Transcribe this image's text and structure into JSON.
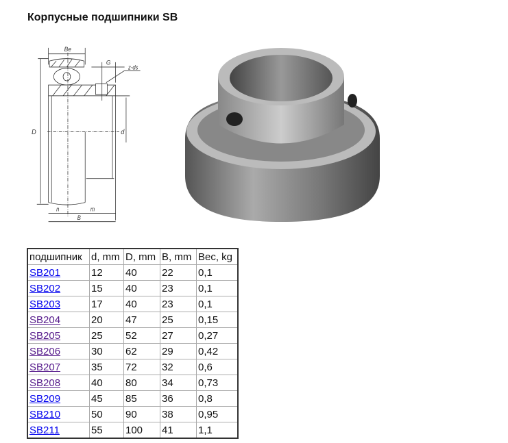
{
  "title": "Корпусные подшипники SB",
  "drawing": {
    "labels": {
      "Be": "Be",
      "G": "G",
      "ds": "z-ds",
      "D": "D",
      "d": "d",
      "n": "n",
      "m": "m",
      "B": "B"
    }
  },
  "table": {
    "headers": [
      "подшипник",
      "d, mm",
      "D, mm",
      "B, mm",
      "Вес, kg"
    ],
    "rows": [
      {
        "name": "SB201",
        "d": "12",
        "D": "40",
        "B": "22",
        "w": "0,1",
        "visited": false
      },
      {
        "name": "SB202",
        "d": "15",
        "D": "40",
        "B": "23",
        "w": "0,1",
        "visited": false
      },
      {
        "name": "SB203",
        "d": "17",
        "D": "40",
        "B": "23",
        "w": "0,1",
        "visited": false
      },
      {
        "name": "SB204",
        "d": "20",
        "D": "47",
        "B": "25",
        "w": "0,15",
        "visited": true
      },
      {
        "name": "SB205",
        "d": "25",
        "D": "52",
        "B": "27",
        "w": "0,27",
        "visited": true
      },
      {
        "name": "SB206",
        "d": "30",
        "D": "62",
        "B": "29",
        "w": "0,42",
        "visited": true
      },
      {
        "name": "SB207",
        "d": "35",
        "D": "72",
        "B": "32",
        "w": "0,6",
        "visited": true
      },
      {
        "name": "SB208",
        "d": "40",
        "D": "80",
        "B": "34",
        "w": "0,73",
        "visited": true
      },
      {
        "name": "SB209",
        "d": "45",
        "D": "85",
        "B": "36",
        "w": "0,8",
        "visited": false
      },
      {
        "name": "SB210",
        "d": "50",
        "D": "90",
        "B": "38",
        "w": "0,95",
        "visited": false
      },
      {
        "name": "SB211",
        "d": "55",
        "D": "100",
        "B": "41",
        "w": "1,1",
        "visited": false
      }
    ]
  },
  "colors": {
    "link": "#0000ee",
    "visited": "#551a8b"
  }
}
